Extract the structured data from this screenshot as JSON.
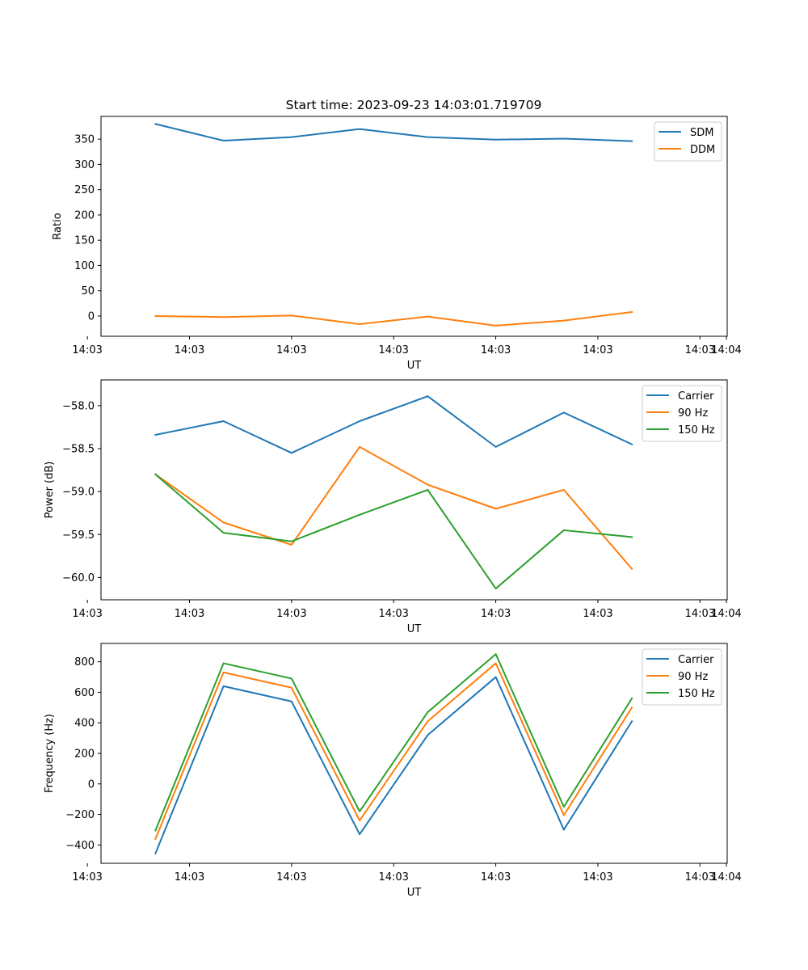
{
  "figure": {
    "title": "Start time: 2023-09-23 14:03:01.719709"
  },
  "chart_data": [
    {
      "type": "line",
      "title": "Start time: 2023-09-23 14:03:01.719709",
      "xlabel": "UT",
      "ylabel": "Ratio",
      "x": [
        1,
        2,
        3,
        4,
        5,
        6,
        7,
        8
      ],
      "xlim": [
        0.2,
        9.4
      ],
      "x_ticks": [
        0,
        1.5,
        3,
        4.5,
        6,
        7.5,
        9
      ],
      "x_tick_labels": [
        "14:03",
        "14:03",
        "14:03",
        "14:03",
        "14:03",
        "14:03",
        "14:03",
        "14:04"
      ],
      "ylim": [
        -40,
        395
      ],
      "y_ticks": [
        0,
        50,
        100,
        150,
        200,
        250,
        300,
        350
      ],
      "series": [
        {
          "name": "SDM",
          "color": "#1f77b4",
          "values": [
            380,
            347,
            354,
            370,
            354,
            349,
            351,
            346
          ]
        },
        {
          "name": "DDM",
          "color": "#ff7f0e",
          "values": [
            0,
            -2,
            1,
            -16,
            -1,
            -19,
            -9,
            8
          ]
        }
      ],
      "legend": "top-right",
      "grid": false
    },
    {
      "type": "line",
      "title": "",
      "xlabel": "UT",
      "ylabel": "Power (dB)",
      "x": [
        1,
        2,
        3,
        4,
        5,
        6,
        7,
        8
      ],
      "xlim": [
        0.2,
        9.4
      ],
      "x_ticks": [
        0,
        1.5,
        3,
        4.5,
        6,
        7.5,
        9
      ],
      "x_tick_labels": [
        "14:03",
        "14:03",
        "14:03",
        "14:03",
        "14:03",
        "14:03",
        "14:03",
        "14:04"
      ],
      "ylim": [
        -60.26,
        -57.7
      ],
      "y_ticks": [
        -58.0,
        -58.5,
        -59.0,
        -59.5,
        -60.0
      ],
      "y_tick_labels": [
        "−58.0",
        "−58.5",
        "−59.0",
        "−59.5",
        "−60.0"
      ],
      "series": [
        {
          "name": "Carrier",
          "color": "#1f77b4",
          "values": [
            -58.34,
            -58.18,
            -58.55,
            -58.18,
            -57.89,
            -58.48,
            -58.08,
            -58.45
          ]
        },
        {
          "name": "90 Hz",
          "color": "#ff7f0e",
          "values": [
            -58.8,
            -59.36,
            -59.62,
            -58.48,
            -58.92,
            -59.2,
            -58.98,
            -59.9
          ]
        },
        {
          "name": "150 Hz",
          "color": "#2ca02c",
          "values": [
            -58.8,
            -59.48,
            -59.58,
            -59.27,
            -58.98,
            -60.13,
            -59.45,
            -59.53
          ]
        }
      ],
      "legend": "top-right",
      "grid": false
    },
    {
      "type": "line",
      "title": "",
      "xlabel": "UT",
      "ylabel": "Frequency (Hz)",
      "x": [
        1,
        2,
        3,
        4,
        5,
        6,
        7,
        8
      ],
      "xlim": [
        0.2,
        9.4
      ],
      "x_ticks": [
        0,
        1.5,
        3,
        4.5,
        6,
        7.5,
        9
      ],
      "x_tick_labels": [
        "14:03",
        "14:03",
        "14:03",
        "14:03",
        "14:03",
        "14:03",
        "14:03",
        "14:04"
      ],
      "ylim": [
        -520,
        920
      ],
      "y_ticks": [
        800,
        600,
        400,
        200,
        0,
        -200,
        -400
      ],
      "y_tick_labels": [
        "800",
        "600",
        "400",
        "200",
        "0",
        "−200",
        "−400"
      ],
      "series": [
        {
          "name": "Carrier",
          "color": "#1f77b4",
          "values": [
            -455,
            640,
            540,
            -330,
            320,
            700,
            -300,
            410
          ]
        },
        {
          "name": "90 Hz",
          "color": "#ff7f0e",
          "values": [
            -360,
            730,
            630,
            -240,
            410,
            790,
            -205,
            500
          ]
        },
        {
          "name": "150 Hz",
          "color": "#2ca02c",
          "values": [
            -305,
            790,
            690,
            -180,
            470,
            850,
            -150,
            560
          ]
        }
      ],
      "legend": "top-right",
      "grid": false
    }
  ]
}
